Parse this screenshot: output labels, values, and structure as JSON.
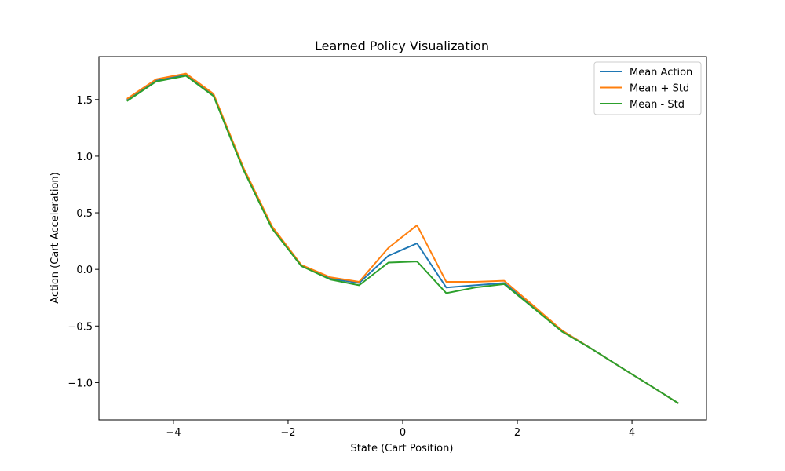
{
  "chart_data": {
    "type": "line",
    "title": "Learned Policy Visualization",
    "xlabel": "State (Cart Position)",
    "ylabel": "Action (Cart Acceleration)",
    "xlim": [
      -5.3,
      5.3
    ],
    "ylim": [
      -1.33,
      1.88
    ],
    "xticks": [
      -4,
      -2,
      0,
      2,
      4
    ],
    "xtick_labels": [
      "−4",
      "−2",
      "0",
      "2",
      "4"
    ],
    "yticks": [
      -1.0,
      -0.5,
      0.0,
      0.5,
      1.0,
      1.5
    ],
    "ytick_labels": [
      "−1.0",
      "−0.5",
      "0.0",
      "0.5",
      "1.0",
      "1.5"
    ],
    "grid": false,
    "legend_position": "top-right",
    "x": [
      -4.8,
      -4.3,
      -3.78,
      -3.3,
      -2.78,
      -2.28,
      -1.77,
      -1.26,
      -0.76,
      -0.25,
      0.25,
      0.76,
      1.26,
      1.77,
      2.28,
      2.78,
      3.29,
      3.79,
      4.3,
      4.8
    ],
    "series": [
      {
        "name": "Mean Action",
        "color": "#1f77b4",
        "values": [
          1.5,
          1.67,
          1.72,
          1.54,
          0.89,
          0.37,
          0.03,
          -0.08,
          -0.12,
          0.12,
          0.23,
          -0.16,
          -0.14,
          -0.12,
          -0.33,
          -0.54,
          -0.7,
          -0.86,
          -1.02,
          -1.18
        ]
      },
      {
        "name": "Mean + Std",
        "color": "#ff7f0e",
        "values": [
          1.51,
          1.68,
          1.73,
          1.55,
          0.9,
          0.38,
          0.04,
          -0.07,
          -0.11,
          0.19,
          0.39,
          -0.11,
          -0.11,
          -0.1,
          -0.32,
          -0.54,
          -0.7,
          -0.86,
          -1.02,
          -1.18
        ]
      },
      {
        "name": "Mean - Std",
        "color": "#2ca02c",
        "values": [
          1.49,
          1.66,
          1.71,
          1.53,
          0.88,
          0.36,
          0.03,
          -0.09,
          -0.14,
          0.06,
          0.07,
          -0.21,
          -0.16,
          -0.13,
          -0.34,
          -0.55,
          -0.7,
          -0.86,
          -1.02,
          -1.18
        ]
      }
    ]
  }
}
